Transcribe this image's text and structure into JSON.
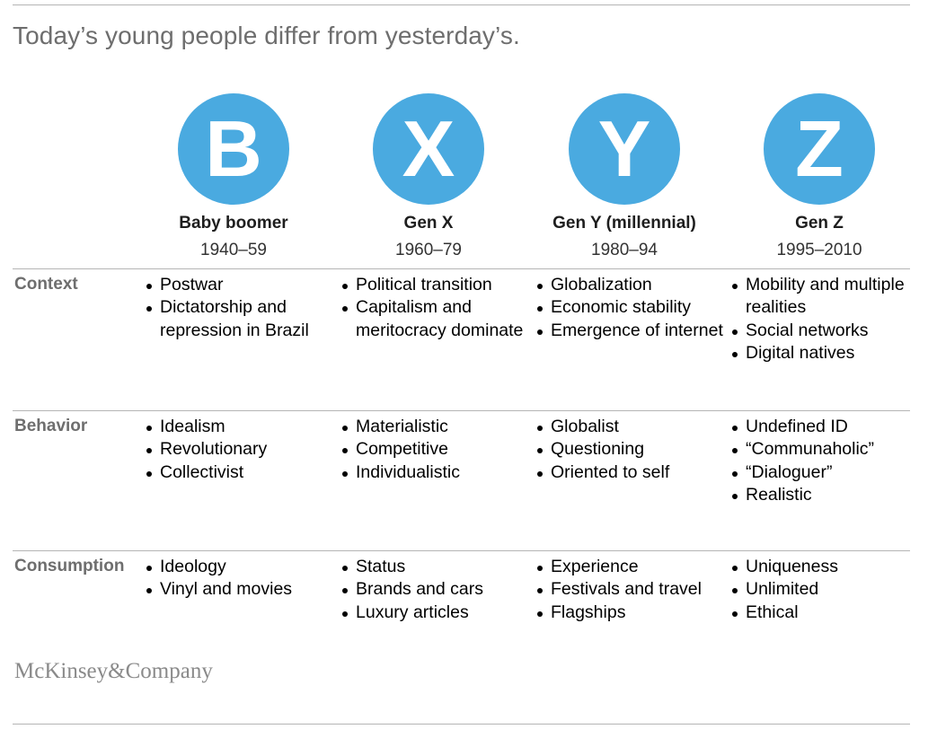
{
  "title": "Today’s young people differ from yesterday’s.",
  "generations": [
    {
      "letter": "B",
      "name": "Baby boomer",
      "years": "1940–59"
    },
    {
      "letter": "X",
      "name": "Gen X",
      "years": "1960–79"
    },
    {
      "letter": "Y",
      "name": "Gen Y (millennial)",
      "years": "1980–94"
    },
    {
      "letter": "Z",
      "name": "Gen Z",
      "years": "1995–2010"
    }
  ],
  "rows": [
    {
      "label": "Context",
      "cells": [
        [
          "Postwar",
          "Dictatorship and repression in Brazil"
        ],
        [
          "Political transition",
          "Capitalism and meritocracy dominate"
        ],
        [
          "Globalization",
          "Economic stability",
          "Emergence of internet"
        ],
        [
          "Mobility and multiple realities",
          "Social networks",
          "Digital natives"
        ]
      ]
    },
    {
      "label": "Behavior",
      "cells": [
        [
          "Idealism",
          "Revolutionary",
          "Collectivist"
        ],
        [
          "Materialistic",
          "Competitive",
          "Individualistic"
        ],
        [
          "Globalist",
          "Questioning",
          "Oriented to self"
        ],
        [
          "Undefined ID",
          "“Communaholic”",
          "“Dialoguer”",
          "Realistic"
        ]
      ]
    },
    {
      "label": "Consumption",
      "cells": [
        [
          "Ideology",
          "Vinyl and movies"
        ],
        [
          "Status",
          "Brands and cars",
          "Luxury articles"
        ],
        [
          "Experience",
          "Festivals and travel",
          "Flagships"
        ],
        [
          "Uniqueness",
          "Unlimited",
          "Ethical"
        ]
      ]
    }
  ],
  "logo": "McKinsey&Company",
  "colors": {
    "circle": "#4aaae0",
    "title": "#6e6e6e",
    "rule": "#b5b5b5"
  }
}
